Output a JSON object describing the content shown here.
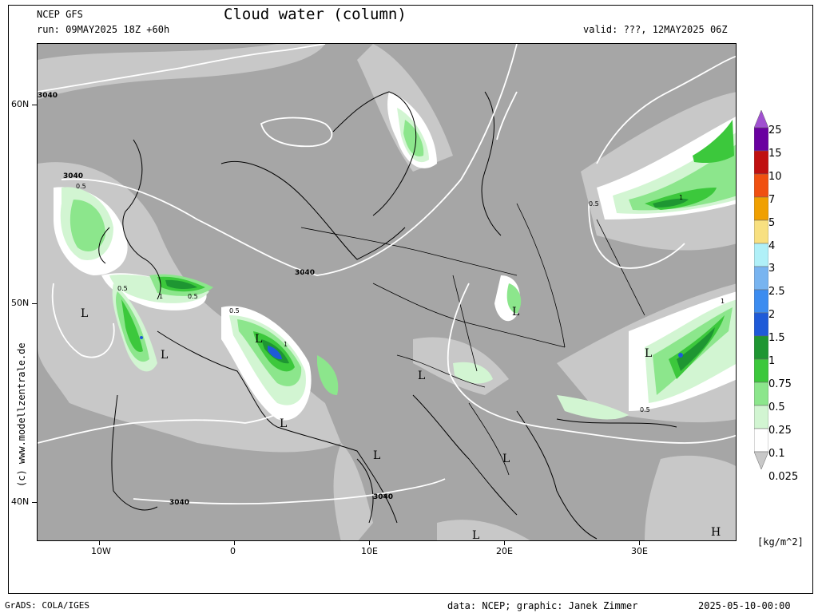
{
  "header": {
    "model": "NCEP GFS",
    "run": "run: 09MAY2025 18Z +60h",
    "title": "Cloud water (column)",
    "valid": "valid: ???, 12MAY2025 06Z"
  },
  "credit": "(c) www.modellzentrale.de",
  "axes": {
    "lat_labels": [
      "60N",
      "50N",
      "40N"
    ],
    "lon_labels": [
      "10W",
      "0",
      "10E",
      "20E",
      "30E"
    ]
  },
  "contour_labels": [
    "3040",
    "3040",
    "3040",
    "3040",
    "3040",
    "3040"
  ],
  "cloud_labels": [
    "0.5",
    "0.5",
    "0.5",
    "0.5",
    "0.5",
    "0.5",
    "1",
    "1",
    "1",
    "1"
  ],
  "pressure_symbols": [
    "L",
    "L",
    "L",
    "L",
    "L",
    "L",
    "L",
    "L",
    "L",
    "L",
    "H"
  ],
  "colorbar": {
    "unit": "[kg/m^2]",
    "levels": [
      {
        "label": "25",
        "color": "#a050d0"
      },
      {
        "label": "15",
        "color": "#6a00a0"
      },
      {
        "label": "10",
        "color": "#c01010"
      },
      {
        "label": "7",
        "color": "#f05010"
      },
      {
        "label": "5",
        "color": "#f0a000"
      },
      {
        "label": "4",
        "color": "#f8e080"
      },
      {
        "label": "3",
        "color": "#b0f0f8"
      },
      {
        "label": "2.5",
        "color": "#78b4f0"
      },
      {
        "label": "2",
        "color": "#3c8cf0"
      },
      {
        "label": "1.5",
        "color": "#1e5ad8"
      },
      {
        "label": "1",
        "color": "#1e9632"
      },
      {
        "label": "0.75",
        "color": "#3cc83c"
      },
      {
        "label": "0.5",
        "color": "#8ce68c"
      },
      {
        "label": "0.25",
        "color": "#d2f5d2"
      },
      {
        "label": "0.1",
        "color": "#ffffff"
      },
      {
        "label": "0.025",
        "color": "#c8c8c8"
      }
    ],
    "background_color": "#a6a6a6"
  },
  "footer": {
    "left": "GrADS: COLA/IGES",
    "center": "data: NCEP; graphic: Janek Zimmer",
    "right": "2025-05-10-00:00"
  }
}
